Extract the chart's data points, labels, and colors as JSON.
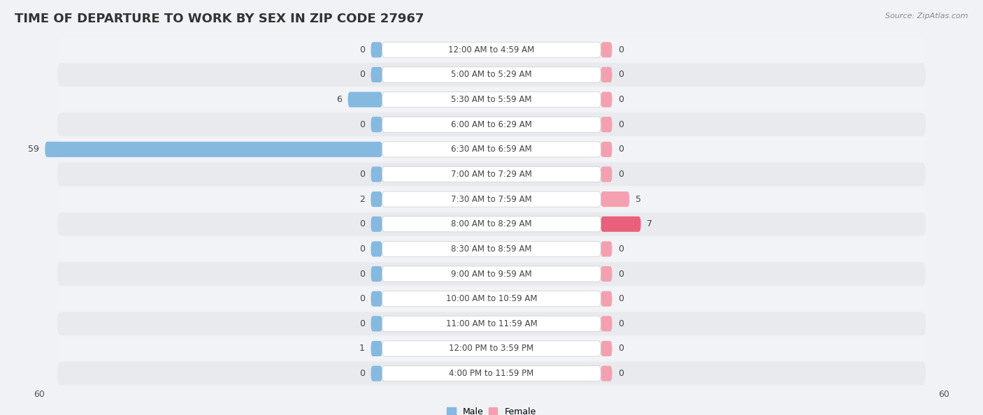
{
  "title": "TIME OF DEPARTURE TO WORK BY SEX IN ZIP CODE 27967",
  "source": "Source: ZipAtlas.com",
  "categories": [
    "12:00 AM to 4:59 AM",
    "5:00 AM to 5:29 AM",
    "5:30 AM to 5:59 AM",
    "6:00 AM to 6:29 AM",
    "6:30 AM to 6:59 AM",
    "7:00 AM to 7:29 AM",
    "7:30 AM to 7:59 AM",
    "8:00 AM to 8:29 AM",
    "8:30 AM to 8:59 AM",
    "9:00 AM to 9:59 AM",
    "10:00 AM to 10:59 AM",
    "11:00 AM to 11:59 AM",
    "12:00 PM to 3:59 PM",
    "4:00 PM to 11:59 PM"
  ],
  "male_values": [
    0,
    0,
    6,
    0,
    59,
    0,
    2,
    0,
    0,
    0,
    0,
    0,
    1,
    0
  ],
  "female_values": [
    0,
    0,
    0,
    0,
    0,
    0,
    5,
    7,
    0,
    0,
    0,
    0,
    0,
    0
  ],
  "male_color": "#85b9e0",
  "female_color": "#f4a0b0",
  "female_color_dark": "#e8607a",
  "axis_max": 60,
  "bg_color": "#f0f2f5",
  "row_bg_even": "#f2f3f6",
  "row_bg_odd": "#e8eaee",
  "row_pill_color": "#e8eaee",
  "center_box_color": "#ffffff",
  "center_box_edge": "#cccccc",
  "title_fontsize": 13,
  "value_fontsize": 9,
  "tick_fontsize": 9,
  "cat_fontsize": 8.5,
  "min_bar_stub": 4
}
